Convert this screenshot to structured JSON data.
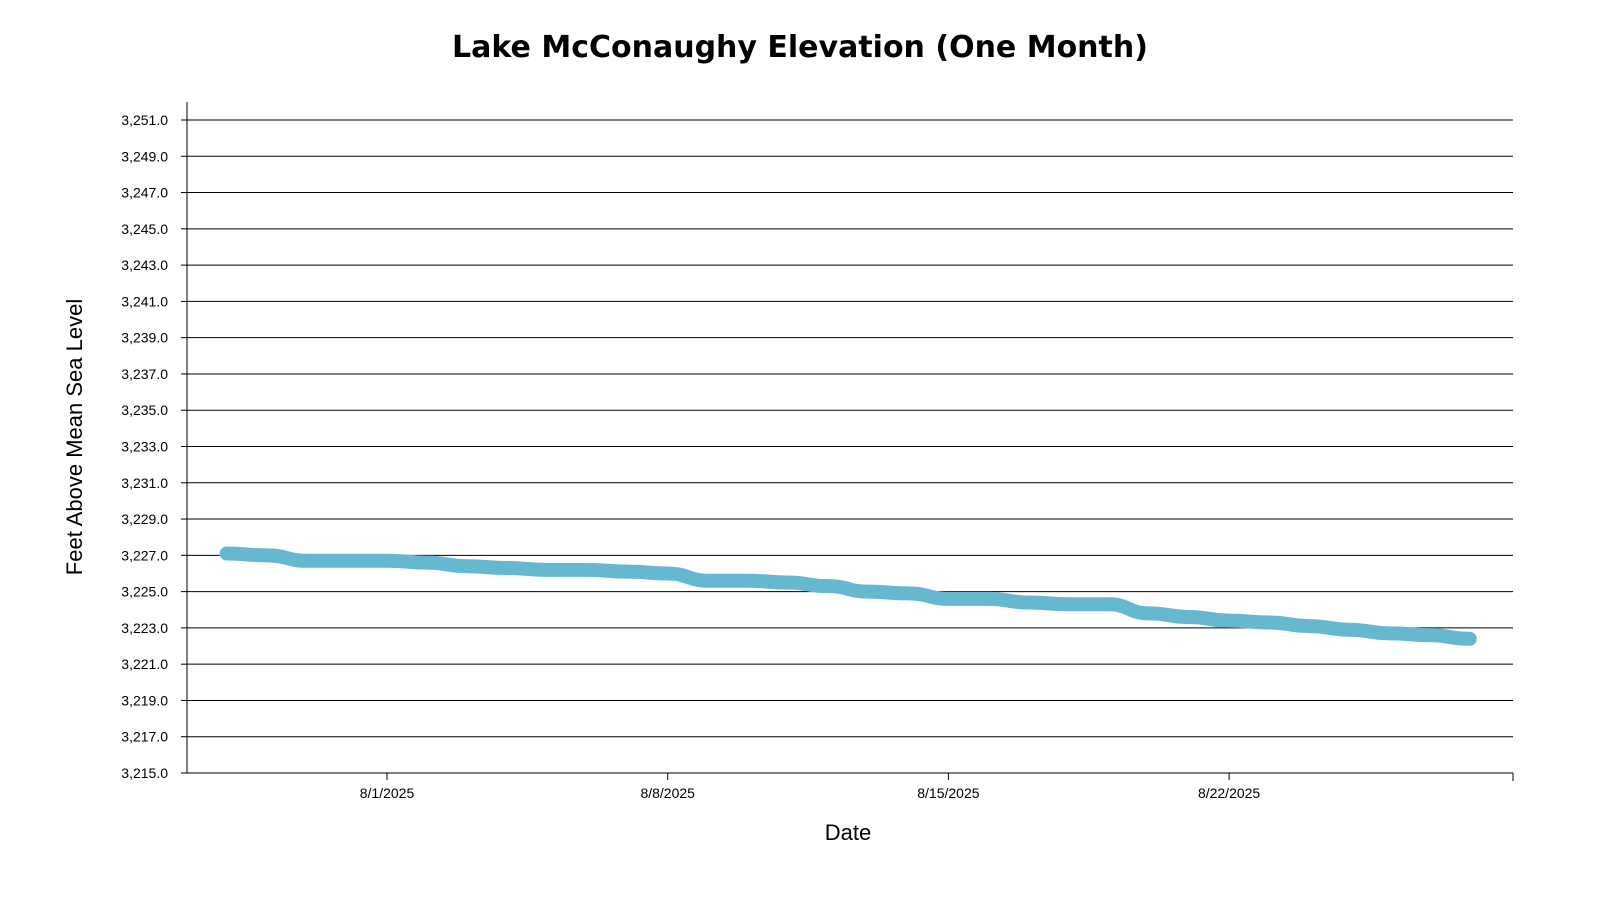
{
  "chart_data": {
    "type": "line",
    "title": "Lake McConaughy Elevation (One Month)",
    "xlabel": "Date",
    "ylabel": "Feet Above Mean Sea Level",
    "ylim": [
      3215.0,
      3251.0
    ],
    "yticks": [
      "3,215.0",
      "3,217.0",
      "3,219.0",
      "3,221.0",
      "3,223.0",
      "3,225.0",
      "3,227.0",
      "3,229.0",
      "3,231.0",
      "3,233.0",
      "3,235.0",
      "3,237.0",
      "3,239.0",
      "3,241.0",
      "3,243.0",
      "3,245.0",
      "3,247.0",
      "3,249.0",
      "3,251.0"
    ],
    "xticks": [
      "8/1/2025",
      "8/8/2025",
      "8/15/2025",
      "8/22/2025"
    ],
    "grid": true,
    "line_color": "#66b8d0",
    "x": [
      "7/28/2025",
      "7/29/2025",
      "7/30/2025",
      "7/31/2025",
      "8/1/2025",
      "8/2/2025",
      "8/3/2025",
      "8/4/2025",
      "8/5/2025",
      "8/6/2025",
      "8/7/2025",
      "8/8/2025",
      "8/9/2025",
      "8/10/2025",
      "8/11/2025",
      "8/12/2025",
      "8/13/2025",
      "8/14/2025",
      "8/15/2025",
      "8/16/2025",
      "8/17/2025",
      "8/18/2025",
      "8/19/2025",
      "8/20/2025",
      "8/21/2025",
      "8/22/2025",
      "8/23/2025",
      "8/24/2025",
      "8/25/2025",
      "8/26/2025",
      "8/27/2025",
      "8/28/2025"
    ],
    "series": [
      {
        "values": [
          3227.1,
          3227.0,
          3226.7,
          3226.7,
          3226.7,
          3226.6,
          3226.4,
          3226.3,
          3226.2,
          3226.2,
          3226.1,
          3226.0,
          3225.6,
          3225.6,
          3225.5,
          3225.3,
          3225.0,
          3224.9,
          3224.6,
          3224.6,
          3224.4,
          3224.3,
          3224.3,
          3223.8,
          3223.6,
          3223.4,
          3223.3,
          3223.1,
          3222.9,
          3222.7,
          3222.6,
          3222.4
        ]
      }
    ]
  }
}
